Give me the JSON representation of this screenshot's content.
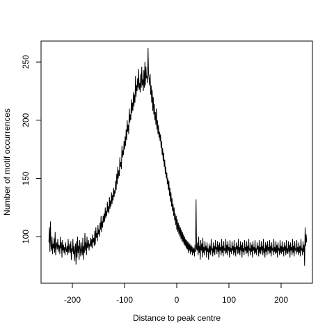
{
  "chart_data": {
    "type": "line",
    "xlabel": "Distance to peak centre",
    "ylabel": "Number of motif occurrences",
    "xlim": [
      -260,
      260
    ],
    "ylim": [
      60,
      268
    ],
    "x_ticks": [
      -200,
      -100,
      0,
      100,
      200
    ],
    "y_ticks": [
      100,
      150,
      200,
      250
    ],
    "x_tick_labels": [
      "-200",
      "-100",
      "0",
      "100",
      "200"
    ],
    "y_tick_labels": [
      "100",
      "150",
      "200",
      "250"
    ],
    "grid": false,
    "series": [
      {
        "x_start": -245,
        "x_step": 1,
        "values": [
          95,
          108,
          87,
          113,
          92,
          88,
          100,
          85,
          94,
          90,
          99,
          86,
          104,
          84,
          92,
          95,
          89,
          98,
          87,
          93,
          92,
          85,
          100,
          90,
          95,
          82,
          97,
          88,
          93,
          86,
          91,
          84,
          95,
          89,
          87,
          92,
          84,
          98,
          86,
          90,
          94,
          86,
          96,
          80,
          90,
          87,
          98,
          85,
          92,
          79,
          88,
          94,
          76,
          96,
          82,
          100,
          86,
          92,
          80,
          97,
          90,
          83,
          95,
          88,
          84,
          99,
          80,
          92,
          86,
          103,
          88,
          95,
          84,
          100,
          90,
          92,
          97,
          88,
          94,
          92,
          99,
          91,
          98,
          90,
          102,
          95,
          99,
          92,
          105,
          93,
          108,
          99,
          103,
          96,
          110,
          102,
          106,
          100,
          112,
          106,
          118,
          104,
          113,
          108,
          118,
          112,
          120,
          113,
          125,
          116,
          122,
          118,
          130,
          121,
          126,
          120,
          134,
          124,
          131,
          126,
          138,
          128,
          136,
          131,
          142,
          134,
          140,
          137,
          148,
          140,
          154,
          145,
          160,
          150,
          157,
          152,
          168,
          160,
          164,
          158,
          178,
          168,
          174,
          170,
          182,
          175,
          186,
          178,
          192,
          183,
          200,
          190,
          196,
          188,
          210,
          198,
          205,
          200,
          218,
          206,
          215,
          208,
          224,
          212,
          222,
          215,
          238,
          220,
          230,
          225,
          236,
          228,
          244,
          226,
          232,
          224,
          240,
          228,
          246,
          230,
          235,
          225,
          243,
          228,
          250,
          230,
          246,
          236,
          238,
          232,
          262,
          240,
          236,
          230,
          240,
          222,
          230,
          215,
          226,
          208,
          220,
          205,
          214,
          200,
          207,
          196,
          210,
          192,
          200,
          188,
          196,
          185,
          190,
          182,
          188,
          176,
          182,
          170,
          176,
          165,
          172,
          160,
          166,
          154,
          160,
          150,
          155,
          145,
          150,
          140,
          148,
          135,
          142,
          130,
          138,
          126,
          133,
          122,
          128,
          118,
          125,
          114,
          120,
          110,
          118,
          106,
          115,
          104,
          112,
          102,
          110,
          100,
          108,
          98,
          106,
          96,
          104,
          95,
          102,
          93,
          100,
          92,
          98,
          90,
          97,
          89,
          96,
          86,
          95,
          88,
          94,
          85,
          93,
          87,
          92,
          84,
          91,
          86,
          90,
          83,
          93,
          87,
          132,
          90,
          88,
          95,
          84,
          100,
          86,
          92,
          80,
          97,
          88,
          94,
          82,
          99,
          86,
          91,
          84,
          96,
          88,
          92,
          82,
          95,
          87,
          90,
          80,
          94,
          86,
          92,
          84,
          98,
          88,
          90,
          83,
          95,
          86,
          92,
          84,
          97,
          89,
          91,
          85,
          96,
          87,
          93,
          82,
          95,
          88,
          91,
          84,
          98,
          86,
          92,
          83,
          96,
          88,
          90,
          85,
          98,
          86,
          93,
          84,
          96,
          88,
          91,
          82,
          97,
          87,
          90,
          85,
          96,
          88,
          92,
          84,
          97,
          86,
          91,
          83,
          95,
          89,
          92,
          85,
          98,
          86,
          91,
          84,
          96,
          88,
          93,
          82,
          95,
          87,
          90,
          84,
          97,
          88,
          91,
          85,
          96,
          86,
          92,
          83,
          98,
          88,
          90,
          84,
          95,
          87,
          93,
          82,
          96,
          88,
          91,
          85,
          97,
          86,
          90,
          84,
          95,
          89,
          92,
          83,
          97,
          86,
          91,
          85,
          96,
          88,
          92,
          84,
          98,
          86,
          90,
          82,
          95,
          87,
          93,
          84,
          96,
          88,
          91,
          85,
          97,
          86,
          92,
          83,
          95,
          88,
          90,
          84,
          98,
          87,
          91,
          85,
          96,
          86,
          93,
          82,
          95,
          88,
          90,
          84,
          97,
          86,
          92,
          85,
          96,
          87,
          91,
          83,
          95,
          88,
          92,
          84,
          97,
          86,
          90,
          85,
          96,
          87,
          93,
          82,
          95,
          88,
          91,
          84,
          98,
          86,
          92,
          83,
          96,
          88,
          90,
          85,
          97,
          87,
          91,
          84,
          95,
          86,
          92,
          83,
          98,
          88,
          90,
          84,
          96,
          87,
          93,
          75,
          108,
          92,
          102,
          95
        ]
      }
    ]
  }
}
